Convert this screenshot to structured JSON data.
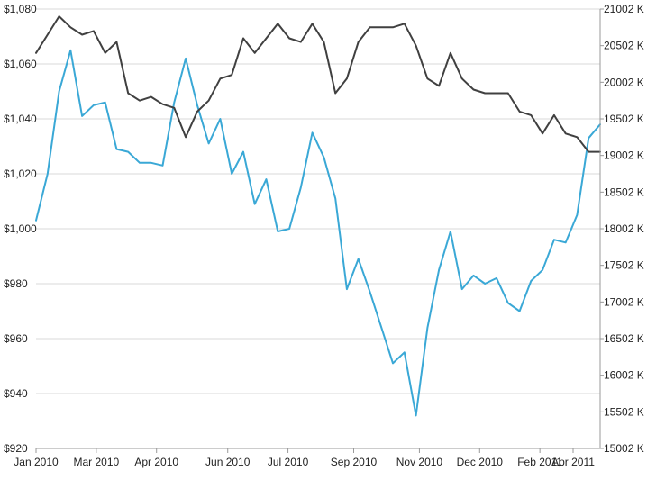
{
  "chart_data": {
    "type": "line",
    "x_labels": [
      "Jan 2010",
      "Mar 2010",
      "Apr 2010",
      "Jun 2010",
      "Jul 2010",
      "Sep 2010",
      "Nov 2010",
      "Dec 2010",
      "Feb 2011",
      "Apr 2011"
    ],
    "y_left": {
      "ticks": [
        "$920",
        "$940",
        "$960",
        "$980",
        "$1,000",
        "$1,020",
        "$1,040",
        "$1,060",
        "$1,080"
      ],
      "range": [
        920,
        1080
      ]
    },
    "y_right": {
      "ticks": [
        "15002 K",
        "15502 K",
        "16002 K",
        "16502 K",
        "17002 K",
        "17502 K",
        "18002 K",
        "18502 K",
        "19002 K",
        "19502 K",
        "20002 K",
        "20502 K",
        "21002 K"
      ],
      "range": [
        15002,
        21002
      ]
    },
    "grid": true,
    "colors": {
      "price_line": "#3aa8d6",
      "volume_line": "#404040",
      "grid": "#d8d8d8",
      "axis": "#9a9a9a"
    },
    "series": [
      {
        "axis": "left",
        "color": "#3aa8d6",
        "values": [
          1003,
          1020,
          1050,
          1065,
          1041,
          1045,
          1046,
          1029,
          1028,
          1024,
          1024,
          1023,
          1046,
          1062,
          1045,
          1031,
          1040,
          1020,
          1028,
          1009,
          1018,
          999,
          1000,
          1015,
          1035,
          1026,
          1011,
          978,
          989,
          977,
          964,
          951,
          955,
          932,
          964,
          985,
          999,
          978,
          983,
          980,
          982,
          973,
          970,
          981,
          985,
          996,
          995,
          1005,
          1033,
          1038
        ]
      },
      {
        "axis": "right",
        "color": "#404040",
        "values": [
          20402,
          20652,
          20902,
          20752,
          20652,
          20702,
          20402,
          20552,
          19852,
          19752,
          19802,
          19702,
          19652,
          19252,
          19602,
          19752,
          20052,
          20102,
          20602,
          20402,
          20602,
          20802,
          20602,
          20552,
          20802,
          20552,
          19852,
          20052,
          20552,
          20752,
          20752,
          20752,
          20802,
          20502,
          20052,
          19952,
          20402,
          20052,
          19902,
          19852,
          19852,
          19852,
          19602,
          19552,
          19302,
          19552,
          19302,
          19252,
          19052,
          19052
        ]
      }
    ]
  }
}
